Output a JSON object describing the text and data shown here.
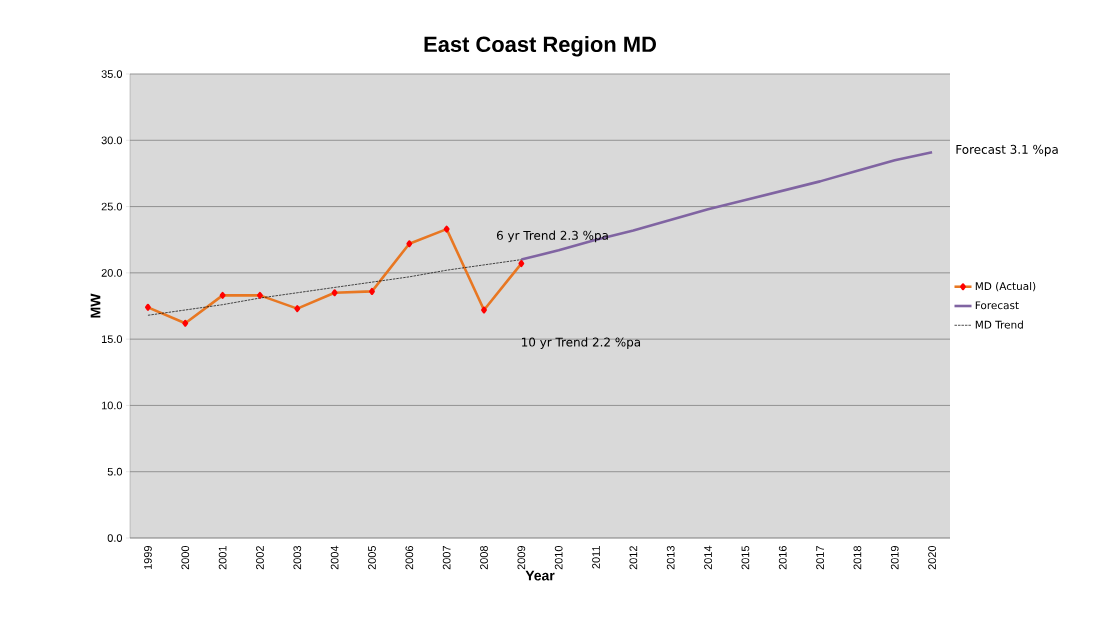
{
  "chart_data": {
    "type": "line",
    "title": "East Coast Region MD",
    "xlabel": "Year",
    "ylabel": "MW",
    "categories": [
      "1999",
      "2000",
      "2001",
      "2002",
      "2003",
      "2004",
      "2005",
      "2006",
      "2007",
      "2008",
      "2009",
      "2010",
      "2011",
      "2012",
      "2013",
      "2014",
      "2015",
      "2016",
      "2017",
      "2018",
      "2019",
      "2020"
    ],
    "series": [
      {
        "name": "MD (Actual)",
        "color": "#e87722",
        "marker": "diamond",
        "line_style": "solid",
        "values": [
          17.4,
          16.2,
          18.3,
          18.3,
          17.3,
          18.5,
          18.6,
          22.2,
          23.3,
          17.2,
          20.7,
          null,
          null,
          null,
          null,
          null,
          null,
          null,
          null,
          null,
          null,
          null
        ]
      },
      {
        "name": "Forecast",
        "color": "#8064a2",
        "marker": "none",
        "line_style": "solid",
        "values": [
          null,
          null,
          null,
          null,
          null,
          null,
          null,
          null,
          null,
          null,
          21.0,
          21.7,
          22.5,
          23.2,
          24.0,
          24.8,
          25.5,
          26.2,
          26.9,
          27.7,
          28.5,
          29.1
        ]
      },
      {
        "name": "MD Trend",
        "color": "#000000",
        "marker": "none",
        "line_style": "dashed",
        "values": [
          16.8,
          17.2,
          17.6,
          18.1,
          18.5,
          18.9,
          19.3,
          19.7,
          20.2,
          20.6,
          21.0,
          null,
          null,
          null,
          null,
          null,
          null,
          null,
          null,
          null,
          null,
          null
        ]
      }
    ],
    "ylim": [
      0,
      35
    ],
    "yticks": [
      {
        "value": 0,
        "label": "0.0"
      },
      {
        "value": 5,
        "label": "5.0"
      },
      {
        "value": 10,
        "label": "10.0"
      },
      {
        "value": 15,
        "label": "15.0"
      },
      {
        "value": 20,
        "label": "20.0"
      },
      {
        "value": 25,
        "label": "25.0"
      },
      {
        "value": 30,
        "label": "30.0"
      },
      {
        "value": 35,
        "label": "35.0"
      }
    ],
    "grid": "y",
    "legend": "right",
    "annotations": [
      "6 yr Trend 2.3 %pa",
      "10 yr Trend  2.2 %pa",
      "Forecast  3.1 %pa"
    ]
  }
}
